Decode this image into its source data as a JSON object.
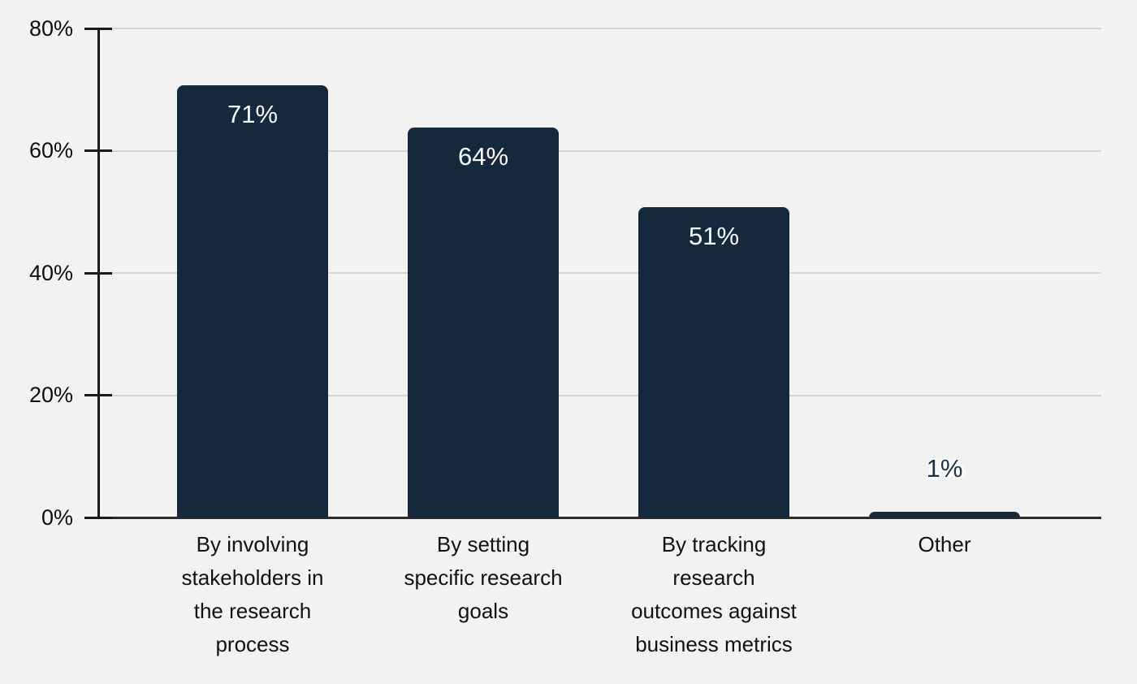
{
  "chart_data": {
    "type": "bar",
    "categories": [
      "By involving stakeholders in the research process",
      "By setting specific research goals",
      "By tracking research outcomes against business metrics",
      "Other"
    ],
    "values": [
      71,
      64,
      51,
      1
    ],
    "value_labels": [
      "71%",
      "64%",
      "51%",
      "1%"
    ],
    "title": "",
    "xlabel": "",
    "ylabel": "",
    "ylim": [
      0,
      80
    ],
    "ytick_labels": [
      "0%",
      "20%",
      "40%",
      "60%",
      "80%"
    ],
    "grid": "horizontal-gridlines-on",
    "legend": "none",
    "colors": {
      "bar": "#16283c",
      "value_label_inside": "#f7fafc",
      "value_label_outside": "#1e3247",
      "gridline": "#d4d4d4",
      "axis": "#1a1a1a",
      "background": "#f2f2f2",
      "category_text": "#111111"
    }
  },
  "display": {
    "category_tick_labels": [
      "By involving\nstakeholders in\nthe research\nprocess",
      "By setting\nspecific research\ngoals",
      "By tracking\nresearch\noutcomes against\nbusiness metrics",
      "Other"
    ]
  }
}
